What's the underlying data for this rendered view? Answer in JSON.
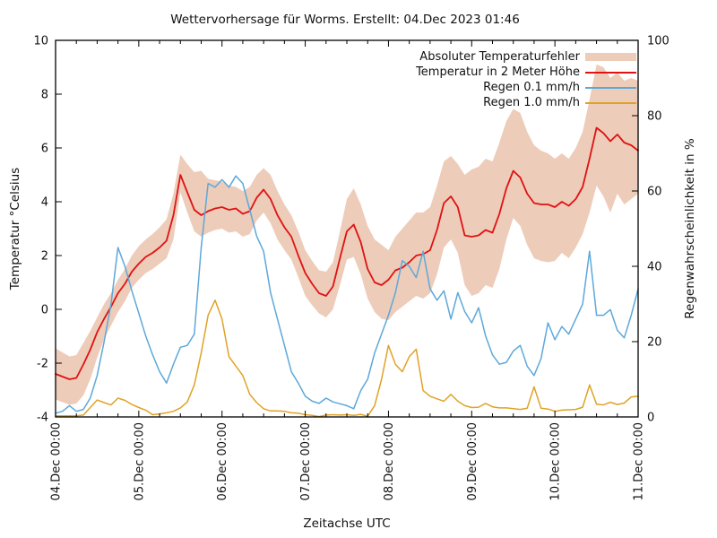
{
  "chart_data": {
    "type": "line",
    "title": "Wettervorhersage für Worms. Erstellt: 04.Dec 2023 01:46",
    "grid": false,
    "legend_position": "top-right-inside",
    "time_step_hours": 2,
    "time_span_hours": 168,
    "x": {
      "label": "Zeitachse UTC",
      "tick_labels": [
        "04.Dec 00:00",
        "05.Dec 00:00",
        "06.Dec 00:00",
        "07.Dec 00:00",
        "08.Dec 00:00",
        "09.Dec 00:00",
        "10.Dec 00:00",
        "11.Dec 00:00"
      ],
      "minor_tick_hours": 6
    },
    "y_left": {
      "label": "Temperatur °Celsius",
      "min": -4,
      "max": 10,
      "ticks": [
        -4,
        -2,
        0,
        2,
        4,
        6,
        8,
        10
      ],
      "tick_labels": [
        "-4",
        "-2",
        "0",
        "2",
        "4",
        "6",
        "8",
        "10"
      ]
    },
    "y_right": {
      "label": "Regenwahrscheinlichkeit in %",
      "min": 0,
      "max": 100,
      "ticks": [
        0,
        20,
        40,
        60,
        80,
        100
      ],
      "tick_labels": [
        "0",
        "20",
        "40",
        "60",
        "80",
        "100"
      ]
    },
    "series": [
      {
        "name": "Absoluter Temperaturfehler",
        "type": "band",
        "axis": "left",
        "color": "#edccba",
        "upper": [
          -1.45,
          -1.6,
          -1.75,
          -1.7,
          -1.25,
          -0.8,
          -0.3,
          0.2,
          0.6,
          1.1,
          1.5,
          2.0,
          2.35,
          2.6,
          2.8,
          3.05,
          3.35,
          4.3,
          5.75,
          5.4,
          5.1,
          5.15,
          4.85,
          4.8,
          4.75,
          4.6,
          4.55,
          4.4,
          4.55,
          5.0,
          5.25,
          5.0,
          4.4,
          3.9,
          3.5,
          2.9,
          2.2,
          1.8,
          1.45,
          1.4,
          1.75,
          2.9,
          4.1,
          4.5,
          3.9,
          3.1,
          2.6,
          2.4,
          2.2,
          2.7,
          3.0,
          3.3,
          3.6,
          3.6,
          3.8,
          4.6,
          5.5,
          5.7,
          5.4,
          5.0,
          5.2,
          5.3,
          5.6,
          5.5,
          6.2,
          7.0,
          7.45,
          7.3,
          6.6,
          6.1,
          5.9,
          5.8,
          5.6,
          5.8,
          5.6,
          6.0,
          6.6,
          7.8,
          9.1,
          9.0,
          8.6,
          8.8,
          8.5,
          8.6,
          8.5
        ],
        "lower": [
          -3.35,
          -3.45,
          -3.55,
          -3.5,
          -3.2,
          -2.6,
          -1.8,
          -1.1,
          -0.6,
          -0.1,
          0.3,
          0.8,
          1.1,
          1.35,
          1.5,
          1.7,
          1.9,
          2.6,
          4.35,
          3.6,
          2.9,
          2.7,
          2.85,
          2.95,
          3.0,
          2.85,
          2.9,
          2.7,
          2.8,
          3.3,
          3.6,
          3.2,
          2.6,
          2.2,
          1.85,
          1.2,
          0.5,
          0.15,
          -0.15,
          -0.3,
          0.0,
          0.9,
          1.85,
          1.95,
          1.3,
          0.4,
          -0.1,
          -0.35,
          -0.4,
          -0.1,
          0.1,
          0.3,
          0.5,
          0.4,
          0.6,
          1.3,
          2.3,
          2.6,
          2.1,
          0.9,
          0.5,
          0.6,
          0.9,
          0.8,
          1.5,
          2.6,
          3.4,
          3.1,
          2.4,
          1.9,
          1.8,
          1.75,
          1.8,
          2.1,
          1.9,
          2.3,
          2.8,
          3.6,
          4.6,
          4.2,
          3.6,
          4.3,
          3.9,
          4.1,
          4.3
        ]
      },
      {
        "name": "Temperatur in 2 Meter Höhe",
        "type": "line",
        "axis": "left",
        "color": "#e01212",
        "width": 1.8,
        "values": [
          -2.4,
          -2.5,
          -2.6,
          -2.55,
          -2.05,
          -1.5,
          -0.85,
          -0.35,
          0.1,
          0.6,
          0.95,
          1.4,
          1.7,
          1.95,
          2.1,
          2.3,
          2.55,
          3.5,
          5.0,
          4.35,
          3.7,
          3.5,
          3.65,
          3.75,
          3.8,
          3.7,
          3.75,
          3.55,
          3.65,
          4.15,
          4.45,
          4.1,
          3.5,
          3.05,
          2.7,
          2.0,
          1.35,
          0.95,
          0.6,
          0.5,
          0.85,
          1.9,
          2.9,
          3.15,
          2.5,
          1.5,
          1.0,
          0.9,
          1.1,
          1.45,
          1.55,
          1.75,
          2.0,
          2.05,
          2.2,
          2.95,
          3.95,
          4.2,
          3.8,
          2.75,
          2.7,
          2.75,
          2.95,
          2.85,
          3.55,
          4.5,
          5.15,
          4.9,
          4.3,
          3.95,
          3.9,
          3.9,
          3.8,
          4.0,
          3.85,
          4.1,
          4.55,
          5.6,
          6.75,
          6.55,
          6.25,
          6.5,
          6.2,
          6.1,
          5.9
        ]
      },
      {
        "name": "Regen 0.1 mm/h",
        "type": "line",
        "axis": "right",
        "color": "#5da8da",
        "width": 1.5,
        "values": [
          1,
          1.5,
          3,
          1.5,
          2,
          5,
          11,
          20,
          30,
          45,
          40,
          33.5,
          27.5,
          21.5,
          16.5,
          12,
          9,
          14,
          18.5,
          19,
          22,
          45,
          62,
          61,
          63,
          61,
          64,
          62,
          55,
          48,
          44,
          33,
          26,
          19,
          12,
          9,
          5.5,
          4.2,
          3.6,
          5,
          4,
          3.5,
          3,
          2.2,
          7,
          10,
          17,
          22,
          27,
          33,
          41.5,
          40,
          37,
          44,
          34,
          31,
          33.5,
          26,
          33,
          28,
          25,
          29,
          21.5,
          16.5,
          14,
          14.5,
          17.5,
          19,
          13.5,
          11,
          15.5,
          25,
          20.5,
          24,
          22,
          26,
          30,
          44,
          27,
          27,
          28.5,
          23,
          21,
          27,
          34
        ]
      },
      {
        "name": "Regen 1.0 mm/h",
        "type": "line",
        "axis": "right",
        "color": "#e0a226",
        "width": 1.5,
        "values": [
          0.3,
          0.3,
          0.3,
          0.3,
          0.5,
          2.5,
          4.5,
          3.8,
          3.2,
          5,
          4.4,
          3.3,
          2.5,
          1.8,
          0.6,
          0.8,
          1.1,
          1.5,
          2.4,
          4,
          8.5,
          17,
          27,
          31,
          26,
          16,
          13.5,
          11,
          6,
          3.8,
          2.2,
          1.6,
          1.6,
          1.5,
          1.1,
          1.0,
          0.6,
          0.4,
          0.1,
          0.5,
          0.6,
          0.5,
          0.6,
          0.4,
          0.7,
          0.2,
          3,
          10,
          19,
          14,
          12,
          16,
          18,
          7,
          5.5,
          4.8,
          4.2,
          6,
          4.2,
          3,
          2.5,
          2.6,
          3.6,
          2.7,
          2.4,
          2.4,
          2.2,
          2.0,
          2.3,
          8,
          2.3,
          2.1,
          1.5,
          1.8,
          1.9,
          2.0,
          2.6,
          8.5,
          3.4,
          3.2,
          3.9,
          3.3,
          3.7,
          5.3,
          5.5
        ]
      }
    ]
  }
}
